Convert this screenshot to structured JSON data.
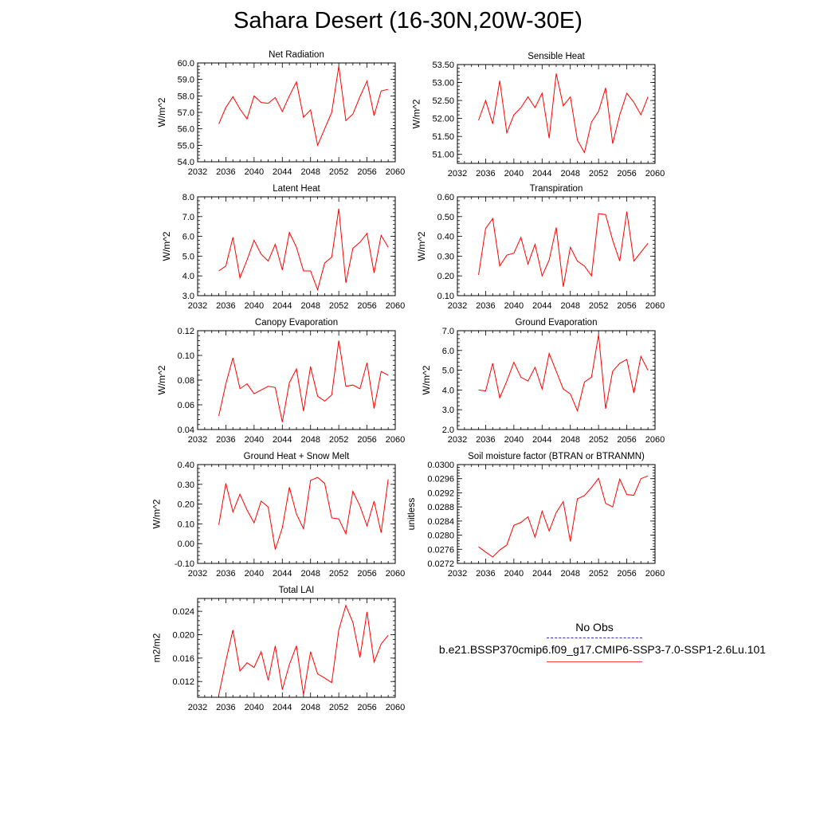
{
  "title": "Sahara Desert (16-30N,20W-30E)",
  "legend": {
    "obs_label": "No Obs",
    "case_label": "b.e21.BSSP370cmip6.f09_g17.CMIP6-SSP3-7.0-SSP1-2.6Lu.101",
    "obs_color": "#2f2fbf",
    "case_color": "#ff0000"
  },
  "chart_data": [
    {
      "type": "line",
      "title": "Net Radiation",
      "ylabel": "W/m^2",
      "xlim": [
        2032,
        2060
      ],
      "ylim": [
        54.0,
        60.0
      ],
      "xticks": [
        2032,
        2036,
        2040,
        2044,
        2048,
        2052,
        2056,
        2060
      ],
      "yticks": [
        "54.0",
        "55.0",
        "56.0",
        "57.0",
        "58.0",
        "59.0",
        "60.0"
      ],
      "x": [
        2035,
        2036,
        2037,
        2038,
        2039,
        2040,
        2041,
        2042,
        2043,
        2044,
        2045,
        2046,
        2047,
        2048,
        2049,
        2050,
        2051,
        2052,
        2053,
        2054,
        2055,
        2056,
        2057,
        2058,
        2059
      ],
      "series": [
        {
          "values": [
            56.3,
            57.3,
            57.95,
            57.2,
            56.6,
            58.0,
            57.6,
            57.55,
            57.9,
            57.05,
            58.0,
            58.85,
            56.7,
            57.15,
            55.0,
            56.0,
            57.0,
            59.8,
            56.5,
            56.9,
            57.95,
            58.9,
            56.8,
            58.3,
            58.4
          ],
          "color": "#ff0000"
        }
      ]
    },
    {
      "type": "line",
      "title": "Sensible Heat",
      "ylabel": "W/m^2",
      "xlim": [
        2032,
        2060
      ],
      "ylim": [
        50.75,
        53.5
      ],
      "xticks": [
        2032,
        2036,
        2040,
        2044,
        2048,
        2052,
        2056,
        2060
      ],
      "yticks": [
        "51.00",
        "51.50",
        "52.00",
        "52.50",
        "53.00",
        "53.50"
      ],
      "x": [
        2035,
        2036,
        2037,
        2038,
        2039,
        2040,
        2041,
        2042,
        2043,
        2044,
        2045,
        2046,
        2047,
        2048,
        2049,
        2050,
        2051,
        2052,
        2053,
        2054,
        2055,
        2056,
        2057,
        2058,
        2059
      ],
      "series": [
        {
          "values": [
            51.95,
            52.5,
            51.85,
            53.05,
            51.6,
            52.1,
            52.3,
            52.6,
            52.3,
            52.7,
            51.45,
            53.25,
            52.35,
            52.6,
            51.4,
            51.05,
            51.9,
            52.2,
            52.85,
            51.3,
            52.1,
            52.7,
            52.45,
            52.1,
            52.6
          ],
          "color": "#ff0000"
        }
      ]
    },
    {
      "type": "line",
      "title": "Latent Heat",
      "ylabel": "W/m^2",
      "xlim": [
        2032,
        2060
      ],
      "ylim": [
        3.0,
        8.0
      ],
      "xticks": [
        2032,
        2036,
        2040,
        2044,
        2048,
        2052,
        2056,
        2060
      ],
      "yticks": [
        "3.0",
        "4.0",
        "5.0",
        "6.0",
        "7.0",
        "8.0"
      ],
      "x": [
        2035,
        2036,
        2037,
        2038,
        2039,
        2040,
        2041,
        2042,
        2043,
        2044,
        2045,
        2046,
        2047,
        2048,
        2049,
        2050,
        2051,
        2052,
        2053,
        2054,
        2055,
        2056,
        2057,
        2058,
        2059
      ],
      "series": [
        {
          "values": [
            4.25,
            4.5,
            5.95,
            3.9,
            4.8,
            5.8,
            5.1,
            4.75,
            5.6,
            4.3,
            6.2,
            5.45,
            4.25,
            4.25,
            3.3,
            4.65,
            4.95,
            7.4,
            3.65,
            5.4,
            5.7,
            6.15,
            4.15,
            6.05,
            5.45
          ],
          "color": "#ff0000"
        }
      ]
    },
    {
      "type": "line",
      "title": "Transpiration",
      "ylabel": "W/m^2",
      "xlim": [
        2032,
        2060
      ],
      "ylim": [
        0.1,
        0.6
      ],
      "xticks": [
        2032,
        2036,
        2040,
        2044,
        2048,
        2052,
        2056,
        2060
      ],
      "yticks": [
        "0.10",
        "0.20",
        "0.30",
        "0.40",
        "0.50",
        "0.60"
      ],
      "x": [
        2035,
        2036,
        2037,
        2038,
        2039,
        2040,
        2041,
        2042,
        2043,
        2044,
        2045,
        2046,
        2047,
        2048,
        2049,
        2050,
        2051,
        2052,
        2053,
        2054,
        2055,
        2056,
        2057,
        2058,
        2059
      ],
      "series": [
        {
          "values": [
            0.205,
            0.44,
            0.49,
            0.25,
            0.305,
            0.315,
            0.395,
            0.26,
            0.36,
            0.2,
            0.28,
            0.445,
            0.145,
            0.345,
            0.275,
            0.25,
            0.2,
            0.515,
            0.51,
            0.38,
            0.275,
            0.525,
            0.275,
            0.32,
            0.365
          ],
          "color": "#ff0000"
        }
      ]
    },
    {
      "type": "line",
      "title": "Canopy Evaporation",
      "ylabel": "W/m^2",
      "xlim": [
        2032,
        2060
      ],
      "ylim": [
        0.04,
        0.12
      ],
      "xticks": [
        2032,
        2036,
        2040,
        2044,
        2048,
        2052,
        2056,
        2060
      ],
      "yticks": [
        "0.04",
        "0.06",
        "0.08",
        "0.10",
        "0.12"
      ],
      "x": [
        2035,
        2036,
        2037,
        2038,
        2039,
        2040,
        2041,
        2042,
        2043,
        2044,
        2045,
        2046,
        2047,
        2048,
        2049,
        2050,
        2051,
        2052,
        2053,
        2054,
        2055,
        2056,
        2057,
        2058,
        2059
      ],
      "series": [
        {
          "values": [
            0.051,
            0.077,
            0.098,
            0.073,
            0.077,
            0.069,
            0.072,
            0.075,
            0.074,
            0.046,
            0.078,
            0.089,
            0.055,
            0.091,
            0.067,
            0.063,
            0.068,
            0.112,
            0.075,
            0.076,
            0.073,
            0.094,
            0.057,
            0.087,
            0.084
          ],
          "color": "#ff0000"
        }
      ]
    },
    {
      "type": "line",
      "title": "Ground Evaporation",
      "ylabel": "W/m^2",
      "xlim": [
        2032,
        2060
      ],
      "ylim": [
        2.0,
        7.0
      ],
      "xticks": [
        2032,
        2036,
        2040,
        2044,
        2048,
        2052,
        2056,
        2060
      ],
      "yticks": [
        "2.0",
        "3.0",
        "4.0",
        "5.0",
        "6.0",
        "7.0"
      ],
      "x": [
        2035,
        2036,
        2037,
        2038,
        2039,
        2040,
        2041,
        2042,
        2043,
        2044,
        2045,
        2046,
        2047,
        2048,
        2049,
        2050,
        2051,
        2052,
        2053,
        2054,
        2055,
        2056,
        2057,
        2058,
        2059
      ],
      "series": [
        {
          "values": [
            4.0,
            3.95,
            5.35,
            3.6,
            4.45,
            5.4,
            4.65,
            4.45,
            5.15,
            4.05,
            5.85,
            4.95,
            4.05,
            3.8,
            2.95,
            4.4,
            4.65,
            6.8,
            3.05,
            4.95,
            5.35,
            5.55,
            3.85,
            5.7,
            5.0
          ],
          "color": "#ff0000"
        }
      ]
    },
    {
      "type": "line",
      "title": "Ground Heat + Snow Melt",
      "ylabel": "W/m^2",
      "xlim": [
        2032,
        2060
      ],
      "ylim": [
        -0.1,
        0.4
      ],
      "xticks": [
        2032,
        2036,
        2040,
        2044,
        2048,
        2052,
        2056,
        2060
      ],
      "yticks": [
        "-0.10",
        "0.00",
        "0.10",
        "0.20",
        "0.30",
        "0.40"
      ],
      "x": [
        2035,
        2036,
        2037,
        2038,
        2039,
        2040,
        2041,
        2042,
        2043,
        2044,
        2045,
        2046,
        2047,
        2048,
        2049,
        2050,
        2051,
        2052,
        2053,
        2054,
        2055,
        2056,
        2057,
        2058,
        2059
      ],
      "series": [
        {
          "values": [
            0.095,
            0.305,
            0.16,
            0.25,
            0.17,
            0.105,
            0.215,
            0.185,
            -0.03,
            0.08,
            0.285,
            0.15,
            0.075,
            0.32,
            0.335,
            0.305,
            0.13,
            0.125,
            0.05,
            0.265,
            0.19,
            0.09,
            0.215,
            0.055,
            0.325
          ],
          "color": "#ff0000"
        }
      ]
    },
    {
      "type": "line",
      "title": "Soil moisture factor (BTRAN or BTRANMN)",
      "ylabel": "unitless",
      "xlim": [
        2032,
        2060
      ],
      "ylim": [
        0.0272,
        0.03
      ],
      "xticks": [
        2032,
        2036,
        2040,
        2044,
        2048,
        2052,
        2056,
        2060
      ],
      "yticks": [
        "0.0272",
        "0.0276",
        "0.0280",
        "0.0284",
        "0.0288",
        "0.0292",
        "0.0296",
        "0.0300"
      ],
      "x": [
        2035,
        2036,
        2037,
        2038,
        2039,
        2040,
        2041,
        2042,
        2043,
        2044,
        2045,
        2046,
        2047,
        2048,
        2049,
        2050,
        2051,
        2052,
        2053,
        2054,
        2055,
        2056,
        2057,
        2058,
        2059
      ],
      "series": [
        {
          "values": [
            0.02767,
            0.02752,
            0.02738,
            0.02758,
            0.02772,
            0.02828,
            0.02836,
            0.02852,
            0.02794,
            0.02868,
            0.02812,
            0.02864,
            0.02895,
            0.02782,
            0.02903,
            0.02912,
            0.02935,
            0.02961,
            0.0289,
            0.0288,
            0.02959,
            0.02915,
            0.02913,
            0.0296,
            0.02968
          ],
          "color": "#ff0000"
        }
      ]
    },
    {
      "type": "line",
      "title": "Total LAI",
      "ylabel": "m2/m2",
      "xlim": [
        2032,
        2060
      ],
      "ylim": [
        0.0093,
        0.0262
      ],
      "xticks": [
        2032,
        2036,
        2040,
        2044,
        2048,
        2052,
        2056,
        2060
      ],
      "yticks": [
        "0.012",
        "0.016",
        "0.020",
        "0.024"
      ],
      "x": [
        2035,
        2036,
        2037,
        2038,
        2039,
        2040,
        2041,
        2042,
        2043,
        2044,
        2045,
        2046,
        2047,
        2048,
        2049,
        2050,
        2051,
        2052,
        2053,
        2054,
        2055,
        2056,
        2057,
        2058,
        2059
      ],
      "series": [
        {
          "values": [
            0.0097,
            0.0155,
            0.0208,
            0.0138,
            0.0152,
            0.0144,
            0.0171,
            0.0122,
            0.0181,
            0.0106,
            0.0149,
            0.0181,
            0.0097,
            0.0171,
            0.0133,
            0.0126,
            0.0118,
            0.0208,
            0.025,
            0.0221,
            0.0161,
            0.0239,
            0.0153,
            0.0184,
            0.0199
          ],
          "color": "#ff0000"
        }
      ]
    }
  ]
}
